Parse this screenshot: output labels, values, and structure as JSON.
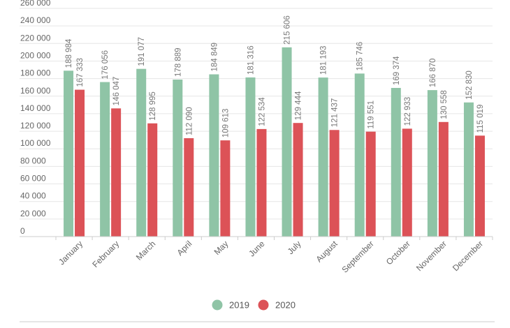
{
  "chart_data": {
    "type": "bar",
    "title": "",
    "xlabel": "",
    "ylabel": "",
    "ylim": [
      0,
      260000
    ],
    "y_tick_step": 20000,
    "y_tick_labels": [
      "0",
      "20 000",
      "40 000",
      "60 000",
      "80 000",
      "100 000",
      "120 000",
      "140 000",
      "160 000",
      "180 000",
      "200 000",
      "220 000",
      "240 000",
      "260 000"
    ],
    "grid": true,
    "legend_position": "bottom-center",
    "categories": [
      "January",
      "February",
      "March",
      "April",
      "May",
      "June",
      "July",
      "August",
      "September",
      "October",
      "November",
      "December"
    ],
    "series": [
      {
        "name": "2019",
        "color": "#8fc4a6",
        "values": [
          188984,
          176056,
          191077,
          178889,
          184849,
          181316,
          215606,
          181193,
          185746,
          169374,
          166870,
          152830
        ],
        "labels": [
          "188 984",
          "176 056",
          "191 077",
          "178 889",
          "184 849",
          "181 316",
          "215 606",
          "181 193",
          "185 746",
          "169 374",
          "166 870",
          "152 830"
        ]
      },
      {
        "name": "2020",
        "color": "#dc5257",
        "values": [
          167333,
          146047,
          128995,
          112090,
          109613,
          122534,
          129444,
          121437,
          119551,
          122933,
          130558,
          115019
        ],
        "labels": [
          "167 333",
          "146 047",
          "128 995",
          "112 090",
          "109 613",
          "122 534",
          "129 444",
          "121 437",
          "119 551",
          "122 933",
          "130 558",
          "115 019"
        ]
      }
    ]
  }
}
